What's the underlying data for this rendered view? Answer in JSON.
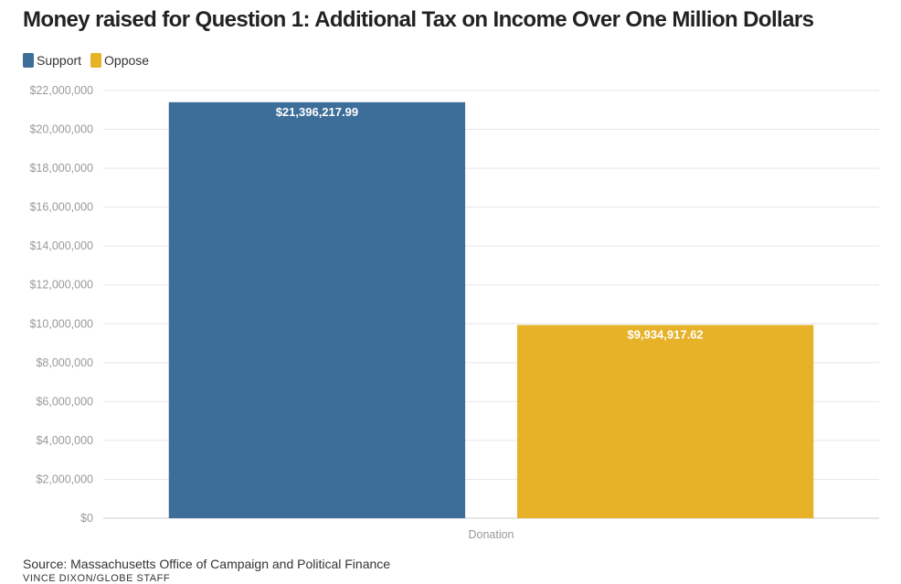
{
  "chart_data": {
    "type": "bar",
    "title": "Money raised for Question 1: Additional Tax on Income Over One Million Dollars",
    "categories": [
      "Donation"
    ],
    "series": [
      {
        "name": "Support",
        "values": [
          21396217.99
        ],
        "color": "#3d6d99",
        "label": "$21,396,217.99"
      },
      {
        "name": "Oppose",
        "values": [
          9934917.62
        ],
        "color": "#e7b128",
        "label": "$9,934,917.62"
      }
    ],
    "ylim": [
      0,
      22000000
    ],
    "yticks": [
      0,
      2000000,
      4000000,
      6000000,
      8000000,
      10000000,
      12000000,
      14000000,
      16000000,
      18000000,
      20000000,
      22000000
    ],
    "ytick_labels": [
      "$0",
      "$2,000,000",
      "$4,000,000",
      "$6,000,000",
      "$8,000,000",
      "$10,000,000",
      "$12,000,000",
      "$14,000,000",
      "$16,000,000",
      "$18,000,000",
      "$20,000,000",
      "$22,000,000"
    ],
    "xlabel": "",
    "ylabel": "",
    "grid": true,
    "legend": "top-left"
  },
  "source": "Source: Massachusetts Office of Campaign and Political Finance",
  "credit": "VINCE DIXON/GLOBE STAFF"
}
